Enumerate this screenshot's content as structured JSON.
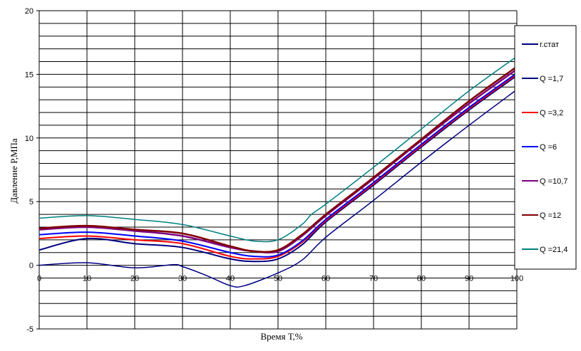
{
  "chart_data": {
    "type": "line",
    "title": "",
    "xlabel": "Время Т,%",
    "ylabel": "Давление Р,МПа",
    "xlim": [
      0,
      100
    ],
    "ylim": [
      -5,
      20
    ],
    "xticks": [
      "0",
      "10",
      "20",
      "30",
      "40",
      "50",
      "60",
      "70",
      "80",
      "90",
      "100"
    ],
    "yticks": [
      "-5",
      "0",
      "5",
      "10",
      "15",
      "20"
    ],
    "grid": true,
    "legend_position": "right",
    "series": [
      {
        "name": "г.стат",
        "color": "#000080",
        "x": [
          0,
          10,
          20,
          28,
          30,
          35,
          40,
          43,
          50,
          55,
          60,
          70,
          80,
          90,
          100
        ],
        "y": [
          0,
          0.2,
          -0.2,
          0.05,
          -0.1,
          -0.8,
          -1.6,
          -1.6,
          -0.6,
          0.4,
          2.2,
          5.1,
          8.1,
          11,
          13.8
        ]
      },
      {
        "name": "Q =1,7",
        "color": "#000080",
        "x": [
          0,
          10,
          20,
          30,
          40,
          45,
          50,
          55,
          60,
          70,
          80,
          90,
          100
        ],
        "y": [
          1.2,
          2.1,
          1.7,
          1.4,
          0.5,
          0.3,
          0.5,
          1.6,
          3.4,
          6.3,
          9.3,
          12.2,
          14.9
        ]
      },
      {
        "name": "Q =3,2",
        "color": "#ff0000",
        "x": [
          0,
          10,
          20,
          30,
          40,
          45,
          50,
          55,
          60,
          70,
          80,
          90,
          100
        ],
        "y": [
          2.1,
          2.3,
          2.0,
          1.7,
          0.7,
          0.5,
          0.7,
          1.8,
          3.5,
          6.4,
          9.4,
          12.3,
          15.0
        ]
      },
      {
        "name": "Q =6",
        "color": "#0000ff",
        "x": [
          0,
          10,
          20,
          30,
          40,
          45,
          50,
          55,
          60,
          70,
          80,
          90,
          100
        ],
        "y": [
          2.4,
          2.6,
          2.3,
          1.9,
          1.0,
          0.7,
          0.8,
          1.9,
          3.6,
          6.5,
          9.5,
          12.4,
          15.1
        ]
      },
      {
        "name": "Q =10,7",
        "color": "#800080",
        "x": [
          0,
          10,
          20,
          30,
          40,
          45,
          50,
          55,
          60,
          70,
          80,
          90,
          100
        ],
        "y": [
          2.8,
          3.0,
          2.7,
          2.3,
          1.4,
          1.1,
          1.1,
          2.3,
          3.9,
          6.8,
          9.8,
          12.7,
          15.4
        ]
      },
      {
        "name": "Q =12",
        "color": "#800000",
        "x": [
          0,
          10,
          20,
          30,
          40,
          45,
          50,
          55,
          60,
          70,
          80,
          90,
          100
        ],
        "y": [
          2.9,
          3.1,
          2.8,
          2.5,
          1.5,
          1.1,
          1.2,
          2.4,
          4.0,
          6.9,
          9.9,
          12.9,
          15.6
        ]
      },
      {
        "name": "Q =21,4",
        "color": "#008080",
        "x": [
          0,
          10,
          20,
          30,
          40,
          45,
          50,
          55,
          57,
          60,
          70,
          80,
          90,
          100
        ],
        "y": [
          3.7,
          3.9,
          3.6,
          3.2,
          2.3,
          1.9,
          2.0,
          3.2,
          4.0,
          4.8,
          7.7,
          10.7,
          13.7,
          16.4
        ]
      }
    ]
  }
}
